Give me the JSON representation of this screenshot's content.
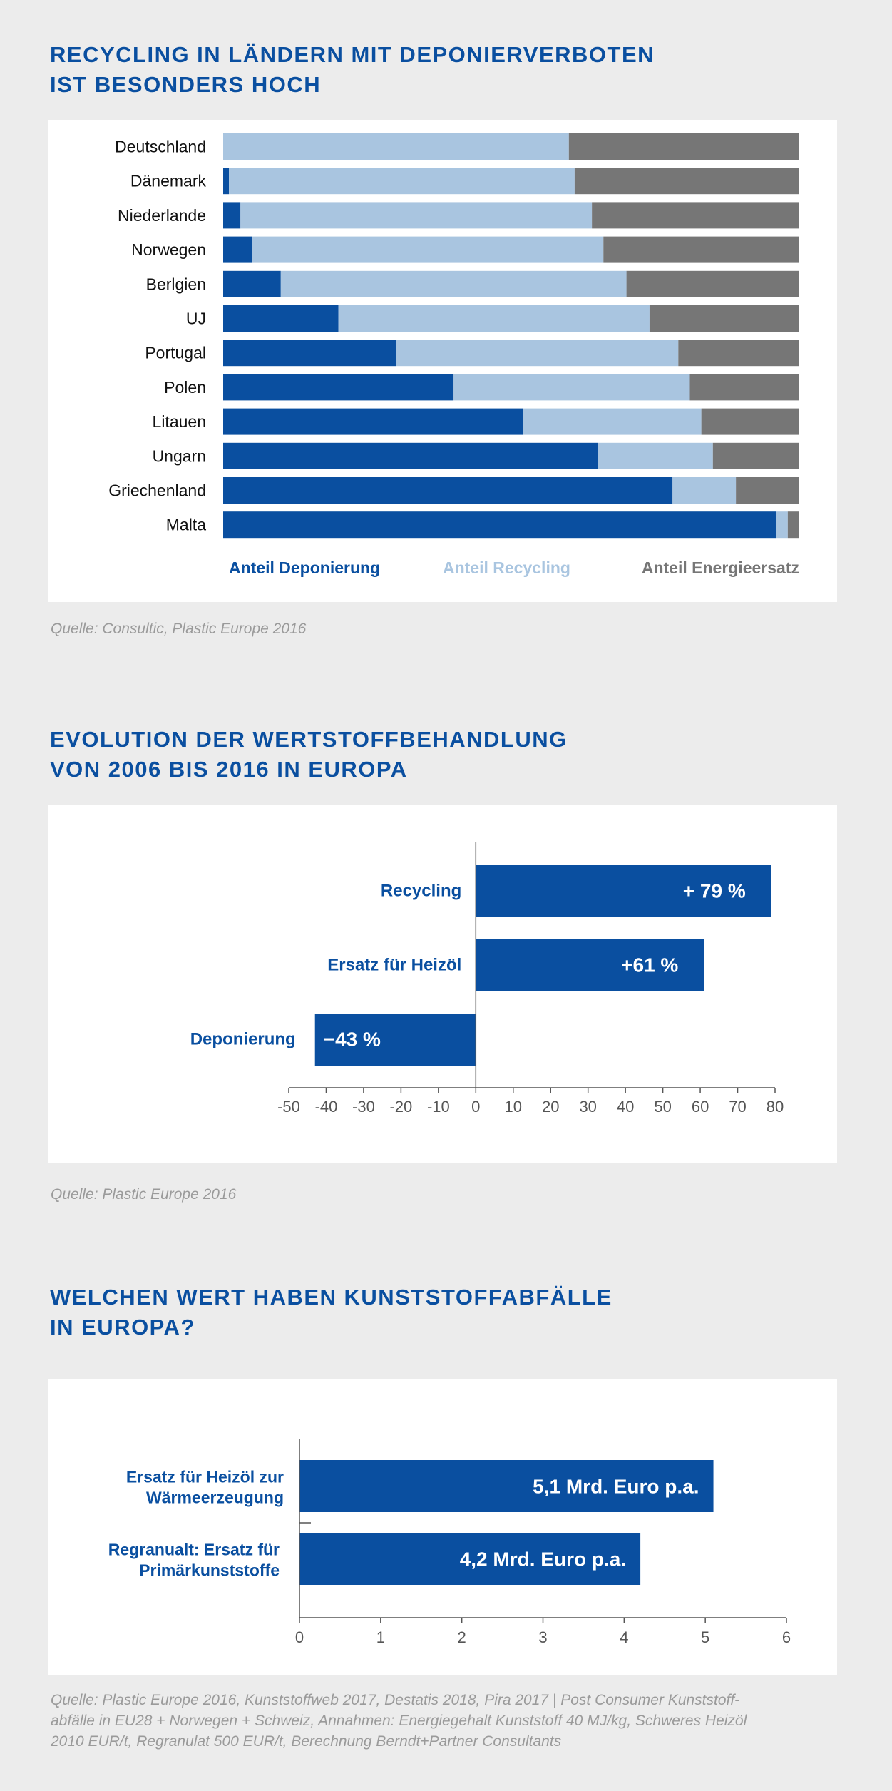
{
  "sections": [
    {
      "title_lines": [
        "RECYCLING IN LÄNDERN MIT DEPONIERVERBOTEN",
        "IST BESONDERS HOCH"
      ],
      "source_lines": [
        "Quelle: Consultic, Plastic Europe 2016"
      ]
    },
    {
      "title_lines": [
        "EVOLUTION DER WERTSTOFFBEHANDLUNG",
        "VON 2006 BIS 2016 IN EUROPA"
      ],
      "source_lines": [
        "Quelle: Plastic Europe 2016"
      ]
    },
    {
      "title_lines": [
        "WELCHEN WERT HABEN KUNSTSTOFFABFÄLLE",
        "IN EUROPA?"
      ],
      "source_lines": [
        "Quelle: Plastic Europe 2016, Kunststoffweb 2017, Destatis 2018, Pira 2017 | Post Consumer Kunststoff-",
        "abfälle in EU28 + Norwegen + Schweiz, Annahmen: Energiegehalt Kunststoff 40 MJ/kg, Schweres Heizöl",
        "2010 EUR/t, Regranulat 500 EUR/t, Berechnung Berndt+Partner Consultants"
      ]
    }
  ],
  "chart_data": [
    {
      "type": "bar",
      "stacked": true,
      "percent": true,
      "categories": [
        "Deutschland",
        "Dänemark",
        "Niederlande",
        "Norwegen",
        "Berlgien",
        "UJ",
        "Portugal",
        "Polen",
        "Litauen",
        "Ungarn",
        "Griechenland",
        "Malta"
      ],
      "series": [
        {
          "name": "Anteil Deponierung",
          "color": "#0a4fa0",
          "values": [
            0,
            1,
            3,
            5,
            10,
            20,
            30,
            40,
            52,
            65,
            78,
            96
          ]
        },
        {
          "name": "Anteil Recycling",
          "color": "#a9c5e0",
          "values": [
            60,
            60,
            61,
            61,
            60,
            54,
            49,
            41,
            31,
            20,
            11,
            2
          ]
        },
        {
          "name": "Anteil Energieersatz",
          "color": "#767676",
          "values": [
            40,
            39,
            36,
            34,
            30,
            26,
            21,
            19,
            17,
            15,
            11,
            2
          ]
        }
      ],
      "legend": "bottom"
    },
    {
      "type": "bar",
      "orientation": "horizontal",
      "categories": [
        "Recycling",
        "Ersatz für Heizöl",
        "Deponierung"
      ],
      "values": [
        79,
        61,
        -43
      ],
      "data_labels": [
        "+ 79 %",
        "+61 %",
        "−43 %"
      ],
      "xlim": [
        -50,
        80
      ],
      "xticks": [
        "-50",
        "-40",
        "-30",
        "-20",
        "-10",
        "0",
        "10",
        "20",
        "30",
        "40",
        "50",
        "60",
        "70",
        "80"
      ],
      "color": "#0a4fa0"
    },
    {
      "type": "bar",
      "orientation": "horizontal",
      "categories": [
        [
          "Ersatz für Heizöl zur",
          "Wärmeerzeugung"
        ],
        [
          "Regranualt: Ersatz für",
          "Primärkunststoffe"
        ]
      ],
      "values": [
        5.1,
        4.2
      ],
      "data_labels": [
        "5,1 Mrd. Euro p.a.",
        "4,2 Mrd. Euro p.a."
      ],
      "xlim": [
        0,
        6
      ],
      "xticks": [
        "0",
        "1",
        "2",
        "3",
        "4",
        "5",
        "6"
      ],
      "color": "#0a4fa0"
    }
  ]
}
